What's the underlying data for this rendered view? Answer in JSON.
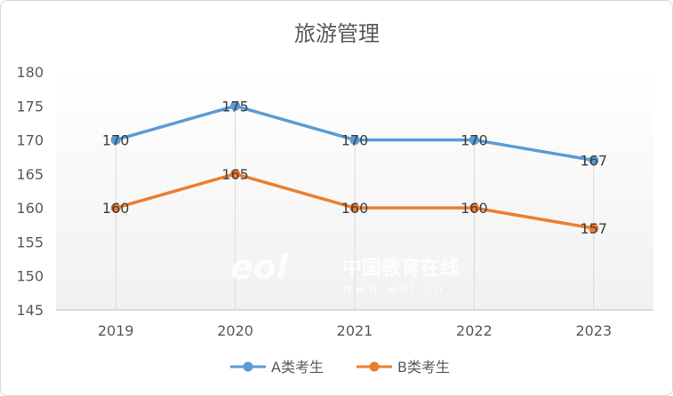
{
  "chart_data": {
    "type": "line",
    "title": "旅游管理",
    "categories": [
      "2019",
      "2020",
      "2021",
      "2022",
      "2023"
    ],
    "series": [
      {
        "name": "A类考生",
        "values": [
          170,
          175,
          170,
          170,
          167
        ],
        "color": "#5b9bd5"
      },
      {
        "name": "B类考生",
        "values": [
          160,
          165,
          160,
          160,
          157
        ],
        "color": "#ed7d31"
      }
    ],
    "ylim": [
      145,
      180
    ],
    "yticks": [
      145,
      150,
      155,
      160,
      165,
      170,
      175,
      180
    ],
    "grid": "vertical-drop-lines",
    "legend": "bottom",
    "data_labels": true
  },
  "watermark": {
    "logo": "eol",
    "text": "中国教育在线",
    "url": "w w w . e o l . c n"
  }
}
